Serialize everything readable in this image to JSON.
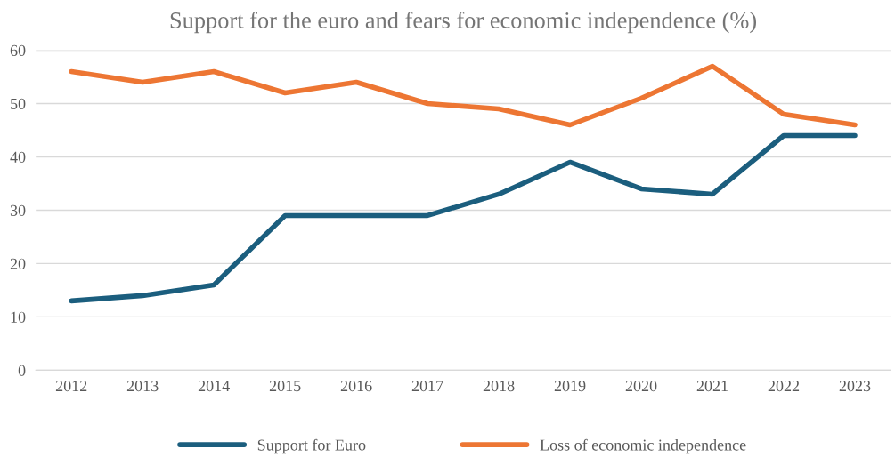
{
  "chart_data": {
    "type": "line",
    "title": "Support for the euro and fears for economic independence (%)",
    "categories": [
      "2012",
      "2013",
      "2014",
      "2015",
      "2016",
      "2017",
      "2018",
      "2019",
      "2020",
      "2021",
      "2022",
      "2023"
    ],
    "series": [
      {
        "name": "Support for Euro",
        "color": "#1b5e7e",
        "values": [
          13,
          14,
          16,
          29,
          29,
          29,
          33,
          39,
          34,
          33,
          44,
          44
        ]
      },
      {
        "name": "Loss of economic independence",
        "color": "#ed7633",
        "values": [
          56,
          54,
          56,
          52,
          54,
          50,
          49,
          46,
          51,
          57,
          48,
          46
        ]
      }
    ],
    "ylim": [
      0,
      60
    ],
    "yticks": [
      0,
      10,
      20,
      30,
      40,
      50,
      60
    ],
    "grid": "y",
    "legend": "bottom",
    "marker": "none",
    "line_style": "solid"
  }
}
